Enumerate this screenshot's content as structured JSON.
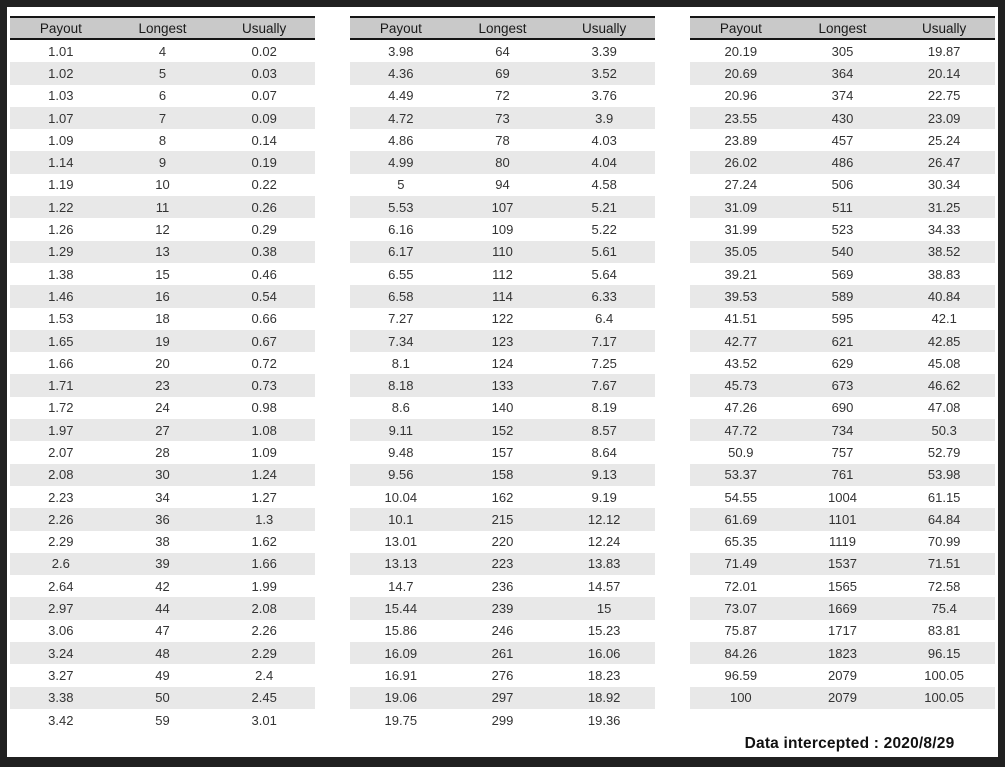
{
  "chart_data": {
    "type": "table",
    "columns": [
      "Payout",
      "Longest",
      "Usually"
    ],
    "tables": [
      {
        "name": "payout-table-1",
        "rows": [
          [
            "1.01",
            "4",
            "0.02"
          ],
          [
            "1.02",
            "5",
            "0.03"
          ],
          [
            "1.03",
            "6",
            "0.07"
          ],
          [
            "1.07",
            "7",
            "0.09"
          ],
          [
            "1.09",
            "8",
            "0.14"
          ],
          [
            "1.14",
            "9",
            "0.19"
          ],
          [
            "1.19",
            "10",
            "0.22"
          ],
          [
            "1.22",
            "11",
            "0.26"
          ],
          [
            "1.26",
            "12",
            "0.29"
          ],
          [
            "1.29",
            "13",
            "0.38"
          ],
          [
            "1.38",
            "15",
            "0.46"
          ],
          [
            "1.46",
            "16",
            "0.54"
          ],
          [
            "1.53",
            "18",
            "0.66"
          ],
          [
            "1.65",
            "19",
            "0.67"
          ],
          [
            "1.66",
            "20",
            "0.72"
          ],
          [
            "1.71",
            "23",
            "0.73"
          ],
          [
            "1.72",
            "24",
            "0.98"
          ],
          [
            "1.97",
            "27",
            "1.08"
          ],
          [
            "2.07",
            "28",
            "1.09"
          ],
          [
            "2.08",
            "30",
            "1.24"
          ],
          [
            "2.23",
            "34",
            "1.27"
          ],
          [
            "2.26",
            "36",
            "1.3"
          ],
          [
            "2.29",
            "38",
            "1.62"
          ],
          [
            "2.6",
            "39",
            "1.66"
          ],
          [
            "2.64",
            "42",
            "1.99"
          ],
          [
            "2.97",
            "44",
            "2.08"
          ],
          [
            "3.06",
            "47",
            "2.26"
          ],
          [
            "3.24",
            "48",
            "2.29"
          ],
          [
            "3.27",
            "49",
            "2.4"
          ],
          [
            "3.38",
            "50",
            "2.45"
          ],
          [
            "3.42",
            "59",
            "3.01"
          ]
        ]
      },
      {
        "name": "payout-table-2",
        "rows": [
          [
            "3.98",
            "64",
            "3.39"
          ],
          [
            "4.36",
            "69",
            "3.52"
          ],
          [
            "4.49",
            "72",
            "3.76"
          ],
          [
            "4.72",
            "73",
            "3.9"
          ],
          [
            "4.86",
            "78",
            "4.03"
          ],
          [
            "4.99",
            "80",
            "4.04"
          ],
          [
            "5",
            "94",
            "4.58"
          ],
          [
            "5.53",
            "107",
            "5.21"
          ],
          [
            "6.16",
            "109",
            "5.22"
          ],
          [
            "6.17",
            "110",
            "5.61"
          ],
          [
            "6.55",
            "112",
            "5.64"
          ],
          [
            "6.58",
            "114",
            "6.33"
          ],
          [
            "7.27",
            "122",
            "6.4"
          ],
          [
            "7.34",
            "123",
            "7.17"
          ],
          [
            "8.1",
            "124",
            "7.25"
          ],
          [
            "8.18",
            "133",
            "7.67"
          ],
          [
            "8.6",
            "140",
            "8.19"
          ],
          [
            "9.11",
            "152",
            "8.57"
          ],
          [
            "9.48",
            "157",
            "8.64"
          ],
          [
            "9.56",
            "158",
            "9.13"
          ],
          [
            "10.04",
            "162",
            "9.19"
          ],
          [
            "10.1",
            "215",
            "12.12"
          ],
          [
            "13.01",
            "220",
            "12.24"
          ],
          [
            "13.13",
            "223",
            "13.83"
          ],
          [
            "14.7",
            "236",
            "14.57"
          ],
          [
            "15.44",
            "239",
            "15"
          ],
          [
            "15.86",
            "246",
            "15.23"
          ],
          [
            "16.09",
            "261",
            "16.06"
          ],
          [
            "16.91",
            "276",
            "18.23"
          ],
          [
            "19.06",
            "297",
            "18.92"
          ],
          [
            "19.75",
            "299",
            "19.36"
          ]
        ]
      },
      {
        "name": "payout-table-3",
        "rows": [
          [
            "20.19",
            "305",
            "19.87"
          ],
          [
            "20.69",
            "364",
            "20.14"
          ],
          [
            "20.96",
            "374",
            "22.75"
          ],
          [
            "23.55",
            "430",
            "23.09"
          ],
          [
            "23.89",
            "457",
            "25.24"
          ],
          [
            "26.02",
            "486",
            "26.47"
          ],
          [
            "27.24",
            "506",
            "30.34"
          ],
          [
            "31.09",
            "511",
            "31.25"
          ],
          [
            "31.99",
            "523",
            "34.33"
          ],
          [
            "35.05",
            "540",
            "38.52"
          ],
          [
            "39.21",
            "569",
            "38.83"
          ],
          [
            "39.53",
            "589",
            "40.84"
          ],
          [
            "41.51",
            "595",
            "42.1"
          ],
          [
            "42.77",
            "621",
            "42.85"
          ],
          [
            "43.52",
            "629",
            "45.08"
          ],
          [
            "45.73",
            "673",
            "46.62"
          ],
          [
            "47.26",
            "690",
            "47.08"
          ],
          [
            "47.72",
            "734",
            "50.3"
          ],
          [
            "50.9",
            "757",
            "52.79"
          ],
          [
            "53.37",
            "761",
            "53.98"
          ],
          [
            "54.55",
            "1004",
            "61.15"
          ],
          [
            "61.69",
            "1101",
            "64.84"
          ],
          [
            "65.35",
            "1119",
            "70.99"
          ],
          [
            "71.49",
            "1537",
            "71.51"
          ],
          [
            "72.01",
            "1565",
            "72.58"
          ],
          [
            "73.07",
            "1669",
            "75.4"
          ],
          [
            "75.87",
            "1717",
            "83.81"
          ],
          [
            "84.26",
            "1823",
            "96.15"
          ],
          [
            "96.59",
            "2079",
            "100.05"
          ],
          [
            "100",
            "2079",
            "100.05"
          ]
        ]
      }
    ],
    "footer": "Data intercepted : 2020/8/29"
  },
  "colors": {
    "frame": "#202020",
    "header_bg": "#c9c9c9",
    "row_alt_bg": "#e8e8e8",
    "header_border": "#151515",
    "text": "#333333"
  }
}
